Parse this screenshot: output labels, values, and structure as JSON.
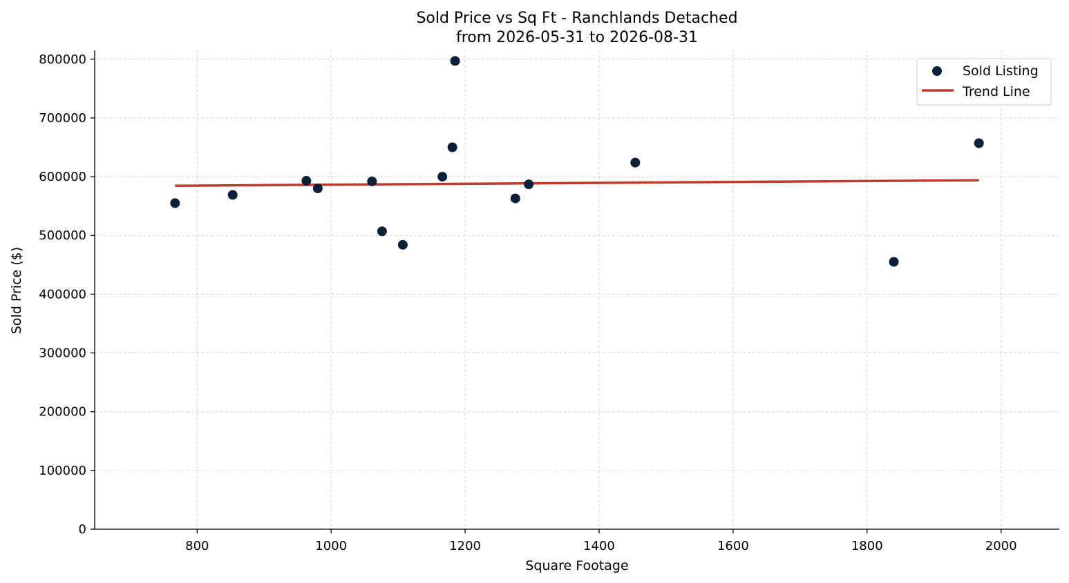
{
  "chart_data": {
    "type": "scatter",
    "title": "Sold Price vs Sq Ft - Ranchlands Detached",
    "subtitle": "from 2026-05-31 to 2026-08-31",
    "xlabel": "Square Footage",
    "ylabel": "Sold Price ($)",
    "xlim": [
      647,
      2087
    ],
    "ylim": [
      0,
      815000
    ],
    "xticks": [
      800,
      1000,
      1200,
      1400,
      1600,
      1800,
      2000
    ],
    "yticks": [
      0,
      100000,
      200000,
      300000,
      400000,
      500000,
      600000,
      700000,
      800000
    ],
    "grid": true,
    "legend_position": "top-right",
    "series": [
      {
        "name": "Sold Listing",
        "kind": "scatter",
        "color": "#0b1f3a",
        "points": [
          {
            "x": 767,
            "y": 555000
          },
          {
            "x": 853,
            "y": 569000
          },
          {
            "x": 963,
            "y": 593000
          },
          {
            "x": 980,
            "y": 580000
          },
          {
            "x": 1061,
            "y": 592000
          },
          {
            "x": 1076,
            "y": 507000
          },
          {
            "x": 1107,
            "y": 484000
          },
          {
            "x": 1166,
            "y": 600000
          },
          {
            "x": 1181,
            "y": 650000
          },
          {
            "x": 1185,
            "y": 797000
          },
          {
            "x": 1275,
            "y": 563000
          },
          {
            "x": 1295,
            "y": 587000
          },
          {
            "x": 1454,
            "y": 624000
          },
          {
            "x": 1840,
            "y": 455000
          },
          {
            "x": 1967,
            "y": 657000
          }
        ]
      },
      {
        "name": "Trend Line",
        "kind": "line",
        "color": "#c0392b",
        "points": [
          {
            "x": 767,
            "y": 584500
          },
          {
            "x": 1967,
            "y": 594000
          }
        ]
      }
    ]
  }
}
